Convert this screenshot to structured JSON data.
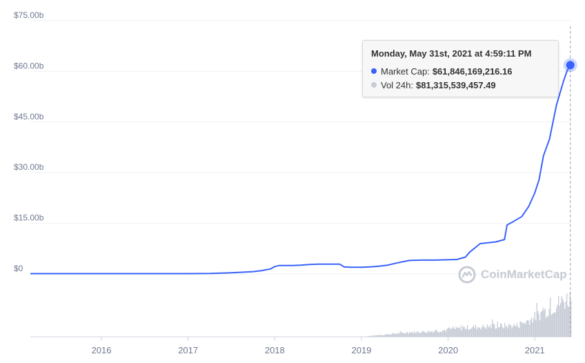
{
  "chart_data": {
    "type": "area",
    "title": "",
    "y_axis": {
      "ticks": [
        "$75.00b",
        "$60.00b",
        "$45.00b",
        "$30.00b",
        "$15.00b",
        "$0"
      ],
      "ylim": [
        0,
        75
      ]
    },
    "x_axis": {
      "ticks": [
        "2016",
        "2017",
        "2018",
        "2019",
        "2020",
        "2021"
      ],
      "xlim": [
        2015.18,
        2021.42
      ]
    },
    "grid": true,
    "series": [
      {
        "name": "Market Cap",
        "unit": "billion USD",
        "color": "#3861fb",
        "points": [
          [
            2015.18,
            0.1
          ],
          [
            2015.5,
            0.1
          ],
          [
            2016.0,
            0.1
          ],
          [
            2016.5,
            0.1
          ],
          [
            2017.0,
            0.1
          ],
          [
            2017.25,
            0.15
          ],
          [
            2017.45,
            0.3
          ],
          [
            2017.6,
            0.5
          ],
          [
            2017.75,
            0.7
          ],
          [
            2017.85,
            1.0
          ],
          [
            2017.95,
            1.5
          ],
          [
            2018.0,
            2.2
          ],
          [
            2018.05,
            2.5
          ],
          [
            2018.2,
            2.5
          ],
          [
            2018.3,
            2.6
          ],
          [
            2018.4,
            2.8
          ],
          [
            2018.5,
            2.9
          ],
          [
            2018.6,
            2.9
          ],
          [
            2018.75,
            2.9
          ],
          [
            2018.8,
            2.1
          ],
          [
            2018.88,
            2.0
          ],
          [
            2019.0,
            2.0
          ],
          [
            2019.1,
            2.1
          ],
          [
            2019.2,
            2.3
          ],
          [
            2019.3,
            2.6
          ],
          [
            2019.4,
            3.2
          ],
          [
            2019.55,
            4.0
          ],
          [
            2019.7,
            4.1
          ],
          [
            2019.85,
            4.1
          ],
          [
            2020.0,
            4.2
          ],
          [
            2020.1,
            4.3
          ],
          [
            2020.2,
            5.0
          ],
          [
            2020.25,
            6.5
          ],
          [
            2020.37,
            9.0
          ],
          [
            2020.55,
            9.5
          ],
          [
            2020.65,
            10.2
          ],
          [
            2020.68,
            14.5
          ],
          [
            2020.75,
            15.5
          ],
          [
            2020.85,
            17.0
          ],
          [
            2020.93,
            20.0
          ],
          [
            2021.0,
            24.0
          ],
          [
            2021.05,
            28.0
          ],
          [
            2021.1,
            35.0
          ],
          [
            2021.17,
            40.0
          ],
          [
            2021.25,
            50.0
          ],
          [
            2021.33,
            57.0
          ],
          [
            2021.37,
            60.0
          ],
          [
            2021.41,
            61.85
          ]
        ]
      },
      {
        "name": "Vol 24h",
        "color": "#c6cbd5",
        "volume_profile": [
          [
            2015.18,
            0
          ],
          [
            2019.0,
            0
          ],
          [
            2019.1,
            0.02
          ],
          [
            2019.2,
            0.04
          ],
          [
            2019.4,
            0.08
          ],
          [
            2019.6,
            0.11
          ],
          [
            2019.8,
            0.13
          ],
          [
            2020.0,
            0.17
          ],
          [
            2020.2,
            0.22
          ],
          [
            2020.4,
            0.24
          ],
          [
            2020.6,
            0.26
          ],
          [
            2020.8,
            0.27
          ],
          [
            2020.95,
            0.42
          ],
          [
            2021.1,
            0.6
          ],
          [
            2021.25,
            0.78
          ],
          [
            2021.42,
            0.95
          ]
        ]
      }
    ],
    "tooltip": {
      "title": "Monday, May 31st, 2021 at 4:59:11 PM",
      "market_cap_label": "Market Cap:",
      "market_cap_value": "$61,846,169,216.16",
      "market_cap_value_b": 61.846,
      "vol_label": "Vol 24h:",
      "vol_value": "$81,315,539,457.49"
    }
  },
  "watermark": {
    "text": "CoinMarketCap"
  },
  "colors": {
    "line": "#3861fb",
    "volume": "#c6cbd5",
    "grid": "#eef0f3",
    "axis_text": "#6e7891"
  }
}
